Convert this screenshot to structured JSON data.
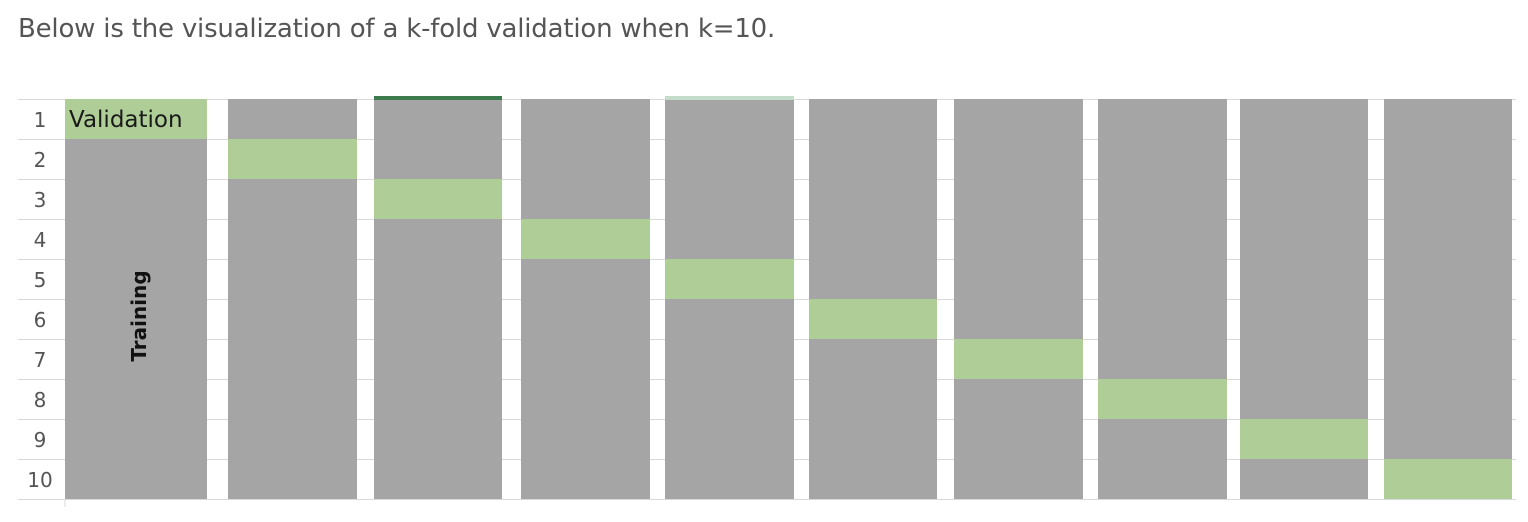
{
  "intro_text": "Below is the visualization of a k-fold validation when k=10.",
  "diagram": {
    "k": 10,
    "row_labels": [
      "1",
      "2",
      "3",
      "4",
      "5",
      "6",
      "7",
      "8",
      "9",
      "10"
    ],
    "validation_label": "Validation",
    "training_label": "Training",
    "folds": [
      {
        "fold": 1,
        "validation_row": 1
      },
      {
        "fold": 2,
        "validation_row": 2
      },
      {
        "fold": 3,
        "validation_row": 3
      },
      {
        "fold": 4,
        "validation_row": 4
      },
      {
        "fold": 5,
        "validation_row": 5
      },
      {
        "fold": 6,
        "validation_row": 6
      },
      {
        "fold": 7,
        "validation_row": 7
      },
      {
        "fold": 8,
        "validation_row": 8
      },
      {
        "fold": 9,
        "validation_row": 9
      },
      {
        "fold": 10,
        "validation_row": 10
      }
    ],
    "colors": {
      "training": "#a5a5a5",
      "validation": "#afcd97",
      "gridline": "#d9d9d9",
      "fold3_top_accent": "#3e7a4e",
      "fold5_top_accent": "#c6dccb"
    }
  }
}
